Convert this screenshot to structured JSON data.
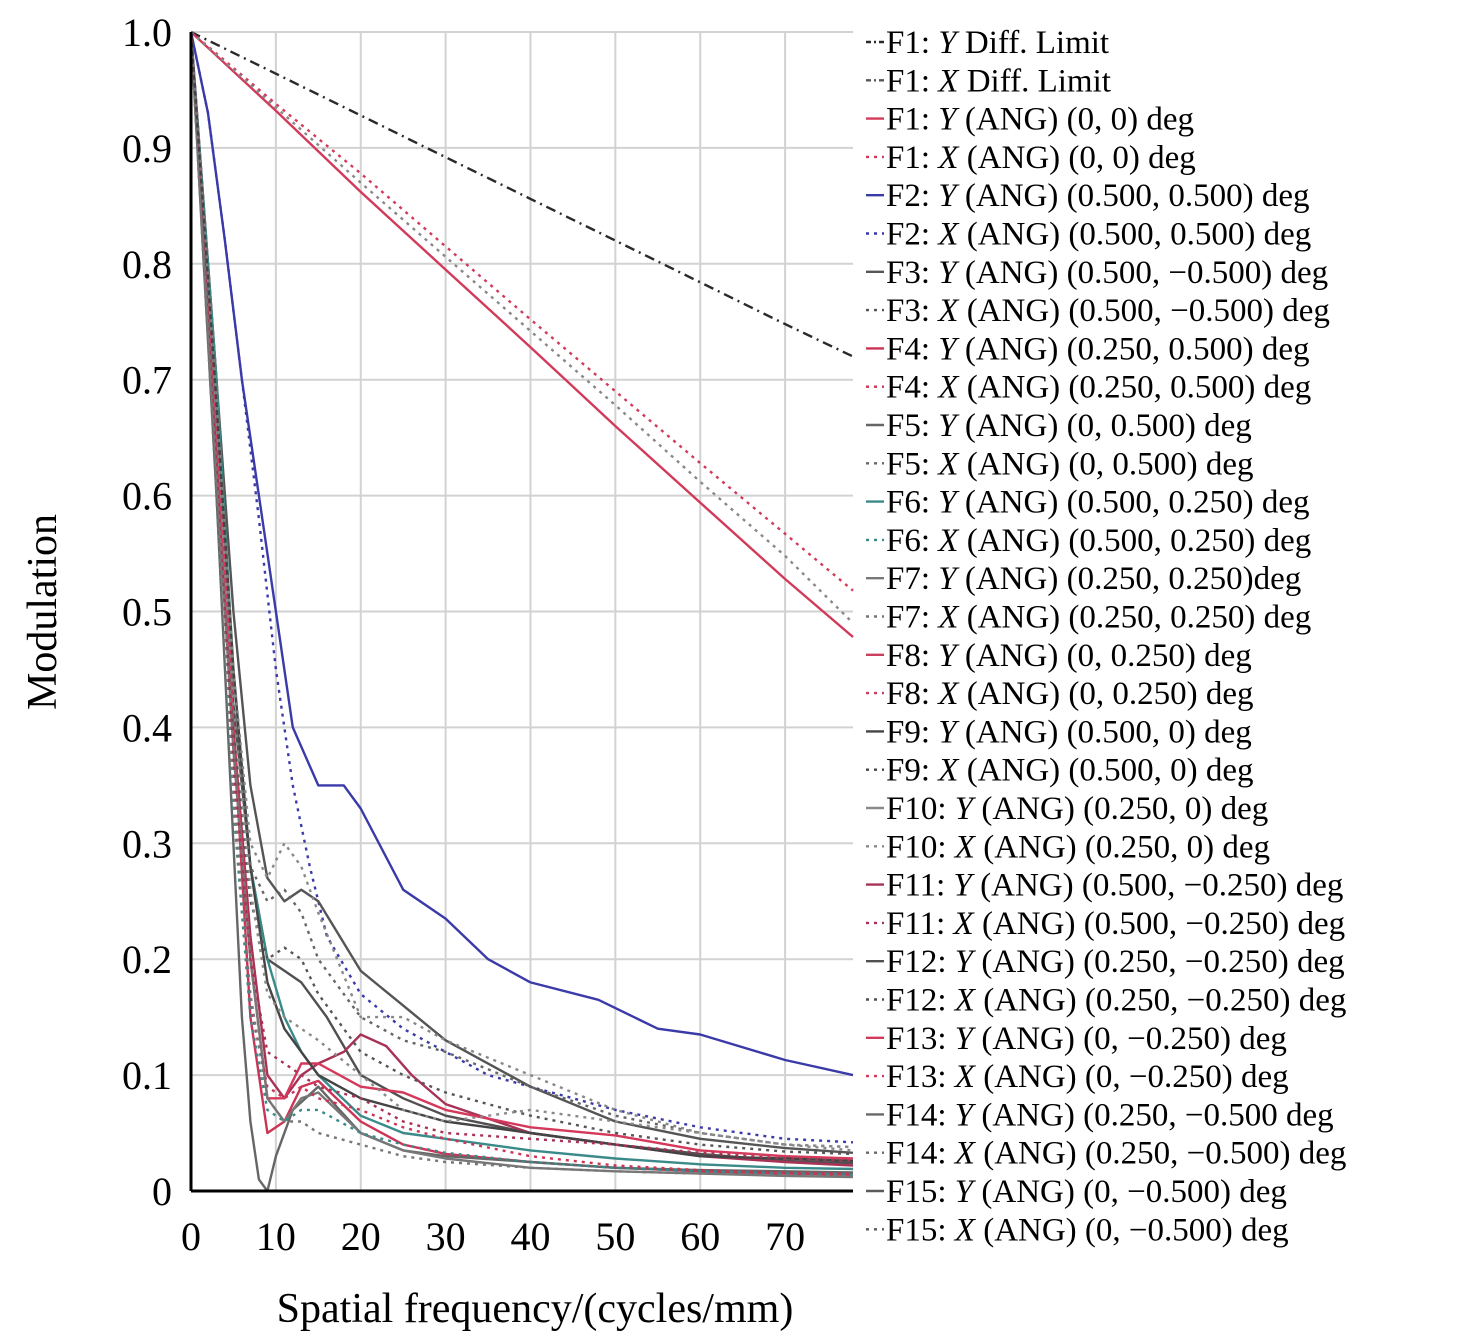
{
  "chart_data": {
    "type": "line",
    "title": "",
    "xlabel": "Spatial frequency/(cycles/mm)",
    "ylabel": "Modulation",
    "xlim": [
      0,
      78
    ],
    "ylim": [
      0,
      1.0
    ],
    "x_ticks": [
      "0",
      "10",
      "20",
      "30",
      "40",
      "50",
      "60",
      "70"
    ],
    "y_ticks": [
      "0",
      "0.1",
      "0.2",
      "0.3",
      "0.4",
      "0.5",
      "0.6",
      "0.7",
      "0.8",
      "0.9",
      "1.0"
    ],
    "grid": true,
    "legend_position": "right",
    "legend": [
      {
        "prefix": "F1: ",
        "axis": "Y",
        "rest": " Diff. Limit",
        "color": "#2a2a2a",
        "dash": "dashdot"
      },
      {
        "prefix": "F1: ",
        "axis": "X",
        "rest": " Diff. Limit",
        "color": "#555555",
        "dash": "dashdot"
      },
      {
        "prefix": "F1: ",
        "axis": "Y",
        "rest": " (ANG) (0, 0) deg",
        "color": "#d23a5a",
        "dash": "solid"
      },
      {
        "prefix": "F1: ",
        "axis": "X",
        "rest": " (ANG) (0, 0) deg",
        "color": "#d23a5a",
        "dash": "dot"
      },
      {
        "prefix": "F2: ",
        "axis": "Y",
        "rest": " (ANG) (0.500, 0.500) deg",
        "color": "#3a3aa8",
        "dash": "solid"
      },
      {
        "prefix": "F2: ",
        "axis": "X",
        "rest": " (ANG) (0.500, 0.500) deg",
        "color": "#3a3aa8",
        "dash": "dot"
      },
      {
        "prefix": "F3: ",
        "axis": "Y",
        "rest": " (ANG) (0.500, −0.500) deg",
        "color": "#555555",
        "dash": "solid"
      },
      {
        "prefix": "F3: ",
        "axis": "X",
        "rest": " (ANG) (0.500, −0.500) deg",
        "color": "#555555",
        "dash": "dot"
      },
      {
        "prefix": "F4: ",
        "axis": "Y",
        "rest": " (ANG) (0.250, 0.500) deg",
        "color": "#cc3355",
        "dash": "solid"
      },
      {
        "prefix": "F4: ",
        "axis": "X",
        "rest": " (ANG) (0.250, 0.500) deg",
        "color": "#cc3355",
        "dash": "dot"
      },
      {
        "prefix": "F5: ",
        "axis": "Y",
        "rest": " (ANG) (0, 0.500) deg",
        "color": "#666666",
        "dash": "solid"
      },
      {
        "prefix": "F5: ",
        "axis": "X",
        "rest": " (ANG) (0, 0.500) deg",
        "color": "#666666",
        "dash": "dot"
      },
      {
        "prefix": "F6: ",
        "axis": "Y",
        "rest": " (ANG) (0.500, 0.250) deg",
        "color": "#3a8a8a",
        "dash": "solid"
      },
      {
        "prefix": "F6: ",
        "axis": "X",
        "rest": " (ANG) (0.500, 0.250) deg",
        "color": "#3a8a8a",
        "dash": "dot"
      },
      {
        "prefix": "F7: ",
        "axis": "Y",
        "rest": " (ANG) (0.250, 0.250)deg",
        "color": "#777777",
        "dash": "solid"
      },
      {
        "prefix": "F7: ",
        "axis": "X",
        "rest": " (ANG) (0.250, 0.250) deg",
        "color": "#777777",
        "dash": "dot"
      },
      {
        "prefix": "F8: ",
        "axis": "Y",
        "rest": " (ANG) (0, 0.250) deg",
        "color": "#c8405e",
        "dash": "solid"
      },
      {
        "prefix": "F8: ",
        "axis": "X",
        "rest": " (ANG) (0, 0.250) deg",
        "color": "#c8405e",
        "dash": "dot"
      },
      {
        "prefix": "F9: ",
        "axis": "Y",
        "rest": " (ANG) (0.500, 0) deg",
        "color": "#444444",
        "dash": "solid"
      },
      {
        "prefix": "F9: ",
        "axis": "X",
        "rest": " (ANG) (0.500, 0) deg",
        "color": "#444444",
        "dash": "dot"
      },
      {
        "prefix": "F10: ",
        "axis": "Y",
        "rest": " (ANG) (0.250, 0) deg",
        "color": "#8a8a8a",
        "dash": "solid"
      },
      {
        "prefix": "F10: ",
        "axis": "X",
        "rest": " (ANG) (0.250, 0) deg",
        "color": "#8a8a8a",
        "dash": "dot"
      },
      {
        "prefix": "F11: ",
        "axis": "Y",
        "rest": " (ANG) (0.500, −0.250) deg",
        "color": "#a83255",
        "dash": "solid"
      },
      {
        "prefix": "F11: ",
        "axis": "X",
        "rest": " (ANG) (0.500, −0.250) deg",
        "color": "#a83255",
        "dash": "dot"
      },
      {
        "prefix": "F12: ",
        "axis": "Y",
        "rest": " (ANG) (0.250, −0.250) deg",
        "color": "#505050",
        "dash": "solid"
      },
      {
        "prefix": "F12: ",
        "axis": "X",
        "rest": " (ANG) (0.250, −0.250) deg",
        "color": "#505050",
        "dash": "dot"
      },
      {
        "prefix": "F13: ",
        "axis": "Y",
        "rest": " (ANG) (0, −0.250) deg",
        "color": "#d4385a",
        "dash": "solid"
      },
      {
        "prefix": "F13: ",
        "axis": "X",
        "rest": " (ANG) (0, −0.250) deg",
        "color": "#d4385a",
        "dash": "dot"
      },
      {
        "prefix": "F14: ",
        "axis": "Y",
        "rest": " (ANG) (0.250, −0.500 deg",
        "color": "#686868",
        "dash": "solid"
      },
      {
        "prefix": "F14: ",
        "axis": "X",
        "rest": " (ANG) (0.250, −0.500) deg",
        "color": "#686868",
        "dash": "dot"
      },
      {
        "prefix": "F15: ",
        "axis": "Y",
        "rest": " (ANG) (0, −0.500) deg",
        "color": "#5a5a5a",
        "dash": "solid"
      },
      {
        "prefix": "F15: ",
        "axis": "X",
        "rest": " (ANG) (0, −0.500) deg",
        "color": "#5a5a5a",
        "dash": "dot"
      }
    ],
    "series": [
      {
        "color": "#2a2a2a",
        "dash": "dashdot",
        "x": [
          0,
          10,
          20,
          30,
          40,
          50,
          60,
          70,
          78
        ],
        "y": [
          1.0,
          0.964,
          0.928,
          0.892,
          0.856,
          0.82,
          0.784,
          0.748,
          0.72
        ]
      },
      {
        "color": "#d23a5a",
        "dash": "solid",
        "x": [
          0,
          10,
          20,
          30,
          40,
          50,
          60,
          70,
          78
        ],
        "y": [
          1.0,
          0.932,
          0.862,
          0.795,
          0.728,
          0.66,
          0.594,
          0.528,
          0.478
        ]
      },
      {
        "color": "#d23a5a",
        "dash": "dot",
        "x": [
          0,
          10,
          20,
          30,
          40,
          50,
          60,
          70,
          78
        ],
        "y": [
          1.0,
          0.938,
          0.878,
          0.815,
          0.752,
          0.69,
          0.628,
          0.567,
          0.518
        ]
      },
      {
        "color": "#888888",
        "dash": "dot",
        "x": [
          0,
          10,
          20,
          30,
          40,
          50,
          60,
          70,
          78
        ],
        "y": [
          1.0,
          0.935,
          0.87,
          0.806,
          0.742,
          0.678,
          0.612,
          0.548,
          0.49
        ]
      },
      {
        "color": "#3a3aa8",
        "dash": "solid",
        "x": [
          0,
          2,
          4,
          6,
          8,
          10,
          12,
          15,
          18,
          20,
          25,
          30,
          35,
          40,
          48,
          55,
          60,
          70,
          78
        ],
        "y": [
          1.0,
          0.93,
          0.82,
          0.7,
          0.6,
          0.5,
          0.4,
          0.35,
          0.35,
          0.33,
          0.26,
          0.235,
          0.2,
          0.18,
          0.165,
          0.14,
          0.135,
          0.113,
          0.1
        ]
      },
      {
        "color": "#3a3aa8",
        "dash": "dot",
        "x": [
          0,
          2,
          4,
          6,
          8,
          10,
          12,
          14,
          16,
          20,
          25,
          30,
          35,
          40,
          50,
          60,
          70,
          78
        ],
        "y": [
          1.0,
          0.93,
          0.82,
          0.7,
          0.58,
          0.45,
          0.35,
          0.28,
          0.22,
          0.17,
          0.14,
          0.12,
          0.1,
          0.09,
          0.07,
          0.055,
          0.045,
          0.042
        ]
      },
      {
        "color": "#555555",
        "dash": "solid",
        "x": [
          0,
          3,
          5,
          7,
          9,
          11,
          13,
          15,
          20,
          25,
          30,
          40,
          50,
          60,
          70,
          78
        ],
        "y": [
          1.0,
          0.7,
          0.5,
          0.35,
          0.27,
          0.25,
          0.26,
          0.25,
          0.19,
          0.16,
          0.13,
          0.09,
          0.06,
          0.045,
          0.037,
          0.033
        ]
      },
      {
        "color": "#505050",
        "dash": "solid",
        "x": [
          0,
          3,
          5,
          7,
          9,
          11,
          13,
          16,
          20,
          25,
          30,
          40,
          50,
          60,
          70,
          78
        ],
        "y": [
          1.0,
          0.65,
          0.42,
          0.28,
          0.2,
          0.19,
          0.18,
          0.15,
          0.1,
          0.08,
          0.065,
          0.05,
          0.04,
          0.032,
          0.026,
          0.024
        ]
      },
      {
        "color": "#cc3355",
        "dash": "solid",
        "x": [
          0,
          3,
          5,
          7,
          9,
          11,
          13,
          15,
          20,
          25,
          30,
          40,
          50,
          60,
          70,
          78
        ],
        "y": [
          1.0,
          0.7,
          0.4,
          0.15,
          0.05,
          0.06,
          0.09,
          0.095,
          0.06,
          0.04,
          0.032,
          0.025,
          0.02,
          0.017,
          0.015,
          0.014
        ]
      },
      {
        "color": "#666666",
        "dash": "solid",
        "x": [
          0,
          3,
          5,
          6,
          7,
          8,
          9,
          10,
          12,
          15,
          20,
          25,
          30,
          40,
          50,
          60,
          70,
          78
        ],
        "y": [
          1.0,
          0.6,
          0.3,
          0.15,
          0.06,
          0.01,
          0.0,
          0.03,
          0.07,
          0.09,
          0.05,
          0.035,
          0.03,
          0.025,
          0.02,
          0.018,
          0.017,
          0.016
        ]
      },
      {
        "color": "#3a8a8a",
        "dash": "solid",
        "x": [
          0,
          3,
          5,
          7,
          9,
          11,
          13,
          15,
          20,
          25,
          30,
          40,
          50,
          60,
          70,
          78
        ],
        "y": [
          1.0,
          0.7,
          0.45,
          0.28,
          0.2,
          0.15,
          0.12,
          0.1,
          0.065,
          0.05,
          0.045,
          0.035,
          0.028,
          0.023,
          0.02,
          0.019
        ]
      },
      {
        "color": "#a83255",
        "dash": "solid",
        "x": [
          0,
          3,
          5,
          7,
          9,
          11,
          13,
          15,
          18,
          20,
          23,
          26,
          30,
          40,
          50,
          60,
          70,
          78
        ],
        "y": [
          1.0,
          0.65,
          0.4,
          0.22,
          0.1,
          0.08,
          0.1,
          0.11,
          0.12,
          0.135,
          0.125,
          0.1,
          0.075,
          0.05,
          0.04,
          0.03,
          0.025,
          0.022
        ]
      },
      {
        "color": "#d4385a",
        "dash": "solid",
        "x": [
          0,
          3,
          5,
          7,
          9,
          11,
          13,
          15,
          20,
          25,
          30,
          40,
          50,
          60,
          70,
          78
        ],
        "y": [
          1.0,
          0.66,
          0.4,
          0.2,
          0.08,
          0.08,
          0.11,
          0.11,
          0.09,
          0.085,
          0.07,
          0.055,
          0.048,
          0.035,
          0.03,
          0.028
        ]
      },
      {
        "color": "#777777",
        "dash": "solid",
        "x": [
          0,
          3,
          5,
          7,
          9,
          11,
          13,
          15,
          20,
          25,
          30,
          40,
          50,
          60,
          70,
          78
        ],
        "y": [
          1.0,
          0.62,
          0.38,
          0.2,
          0.08,
          0.06,
          0.08,
          0.085,
          0.05,
          0.035,
          0.028,
          0.02,
          0.017,
          0.015,
          0.013,
          0.012
        ]
      },
      {
        "color": "#444444",
        "dash": "solid",
        "x": [
          0,
          3,
          5,
          7,
          9,
          11,
          13,
          15,
          20,
          25,
          30,
          40,
          50,
          60,
          70,
          78
        ],
        "y": [
          1.0,
          0.68,
          0.45,
          0.28,
          0.18,
          0.14,
          0.12,
          0.1,
          0.08,
          0.07,
          0.06,
          0.05,
          0.04,
          0.03,
          0.028,
          0.026
        ]
      },
      {
        "color": "#888888",
        "dash": "dot",
        "x": [
          0,
          3,
          5,
          7,
          9,
          11,
          13,
          15,
          20,
          25,
          30,
          40,
          50,
          60,
          70,
          78
        ],
        "y": [
          1.0,
          0.68,
          0.45,
          0.3,
          0.27,
          0.3,
          0.28,
          0.24,
          0.15,
          0.15,
          0.13,
          0.1,
          0.07,
          0.05,
          0.04,
          0.035
        ]
      },
      {
        "color": "#666666",
        "dash": "dot",
        "x": [
          0,
          3,
          5,
          7,
          9,
          11,
          13,
          15,
          20,
          25,
          30,
          40,
          50,
          60,
          70,
          78
        ],
        "y": [
          1.0,
          0.66,
          0.42,
          0.28,
          0.25,
          0.26,
          0.24,
          0.2,
          0.15,
          0.13,
          0.12,
          0.09,
          0.065,
          0.05,
          0.04,
          0.038
        ]
      },
      {
        "color": "#555555",
        "dash": "dot",
        "x": [
          0,
          3,
          5,
          7,
          9,
          11,
          13,
          15,
          20,
          25,
          30,
          40,
          50,
          60,
          70,
          78
        ],
        "y": [
          1.0,
          0.64,
          0.4,
          0.25,
          0.2,
          0.21,
          0.2,
          0.17,
          0.12,
          0.1,
          0.085,
          0.065,
          0.05,
          0.04,
          0.034,
          0.032
        ]
      },
      {
        "color": "#cc3355",
        "dash": "dot",
        "x": [
          0,
          3,
          5,
          7,
          9,
          11,
          13,
          15,
          20,
          25,
          30,
          40,
          50,
          60,
          70,
          78
        ],
        "y": [
          1.0,
          0.62,
          0.35,
          0.16,
          0.09,
          0.08,
          0.09,
          0.08,
          0.07,
          0.055,
          0.045,
          0.03,
          0.022,
          0.018,
          0.016,
          0.015
        ]
      },
      {
        "color": "#3a8a8a",
        "dash": "dot",
        "x": [
          0,
          3,
          5,
          7,
          9,
          11,
          13,
          15,
          20,
          25,
          30,
          40,
          50,
          60,
          70,
          78
        ],
        "y": [
          1.0,
          0.6,
          0.33,
          0.15,
          0.07,
          0.06,
          0.07,
          0.07,
          0.05,
          0.04,
          0.033,
          0.025,
          0.02,
          0.017,
          0.015,
          0.014
        ]
      },
      {
        "color": "#8a8a8a",
        "dash": "dot",
        "x": [
          0,
          3,
          5,
          7,
          9,
          11,
          13,
          15,
          20,
          25,
          30,
          40,
          50,
          60,
          70,
          78
        ],
        "y": [
          1.0,
          0.65,
          0.42,
          0.26,
          0.17,
          0.15,
          0.14,
          0.13,
          0.1,
          0.07,
          0.06,
          0.07,
          0.06,
          0.05,
          0.04,
          0.038
        ]
      },
      {
        "color": "#a83255",
        "dash": "dot",
        "x": [
          0,
          3,
          5,
          7,
          9,
          11,
          13,
          15,
          20,
          25,
          30,
          40,
          50,
          60,
          70,
          78
        ],
        "y": [
          1.0,
          0.63,
          0.37,
          0.2,
          0.12,
          0.11,
          0.1,
          0.09,
          0.08,
          0.06,
          0.05,
          0.045,
          0.04,
          0.033,
          0.028,
          0.026
        ]
      },
      {
        "color": "#777777",
        "dash": "dot",
        "x": [
          0,
          3,
          5,
          7,
          9,
          11,
          13,
          15,
          20,
          25,
          30,
          40,
          50,
          60,
          70,
          78
        ],
        "y": [
          1.0,
          0.6,
          0.34,
          0.17,
          0.08,
          0.06,
          0.06,
          0.05,
          0.04,
          0.03,
          0.025,
          0.02,
          0.017,
          0.015,
          0.014,
          0.013
        ]
      }
    ]
  }
}
